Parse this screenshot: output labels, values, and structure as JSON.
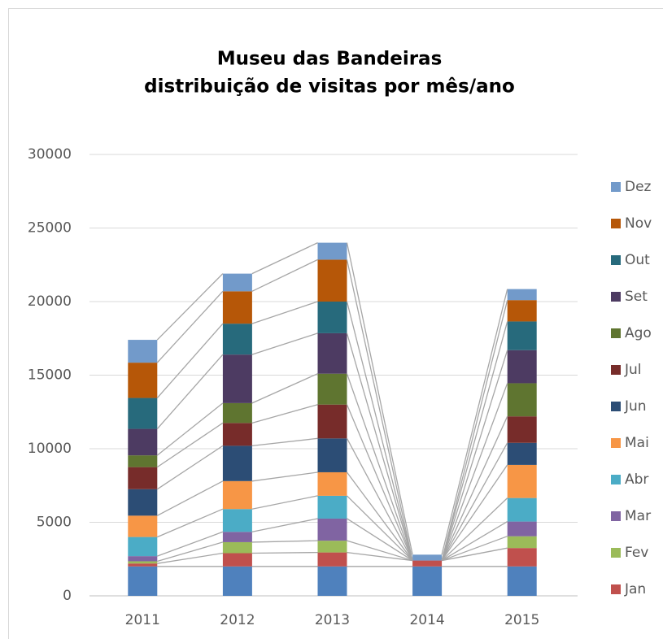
{
  "chart_data": {
    "type": "stacked_bar",
    "title": [
      "Museu das Bandeiras",
      "distribuição de visitas por mês/ano"
    ],
    "categories": [
      "2011",
      "2012",
      "2013",
      "2014",
      "2015"
    ],
    "series": [
      {
        "name": null,
        "color": "#4f81bd",
        "values": [
          2000,
          2000,
          2000,
          2000,
          2000
        ]
      },
      {
        "name": "Jan",
        "color": "#c0504d",
        "values": [
          200,
          900,
          950,
          400,
          1250
        ]
      },
      {
        "name": "Fev",
        "color": "#9bbb59",
        "values": [
          150,
          750,
          800,
          0,
          800
        ]
      },
      {
        "name": "Mar",
        "color": "#8064a2",
        "values": [
          350,
          700,
          1500,
          0,
          1000
        ]
      },
      {
        "name": "Abr",
        "color": "#4bacc6",
        "values": [
          1300,
          1550,
          1550,
          0,
          1600
        ]
      },
      {
        "name": "Mai",
        "color": "#f79646",
        "values": [
          1450,
          1900,
          1600,
          0,
          2250
        ]
      },
      {
        "name": "Jun",
        "color": "#2c4d75",
        "values": [
          1800,
          2400,
          2300,
          0,
          1500
        ]
      },
      {
        "name": "Jul",
        "color": "#772c2a",
        "values": [
          1500,
          1550,
          2300,
          0,
          1800
        ]
      },
      {
        "name": "Ago",
        "color": "#5f7530",
        "values": [
          800,
          1350,
          2100,
          0,
          2250
        ]
      },
      {
        "name": "Set",
        "color": "#4d3b62",
        "values": [
          1800,
          3300,
          2750,
          0,
          2250
        ]
      },
      {
        "name": "Out",
        "color": "#276a7c",
        "values": [
          2100,
          2100,
          2150,
          0,
          1950
        ]
      },
      {
        "name": "Nov",
        "color": "#b65708",
        "values": [
          2400,
          2200,
          2850,
          0,
          1450
        ]
      },
      {
        "name": "Dez",
        "color": "#729aca",
        "values": [
          1550,
          1200,
          1150,
          400,
          750
        ]
      }
    ],
    "ylim": [
      0,
      30000
    ],
    "yticks": [
      0,
      5000,
      10000,
      15000,
      20000,
      25000,
      30000
    ],
    "grid": true,
    "series_lines": true,
    "legend": "right"
  }
}
